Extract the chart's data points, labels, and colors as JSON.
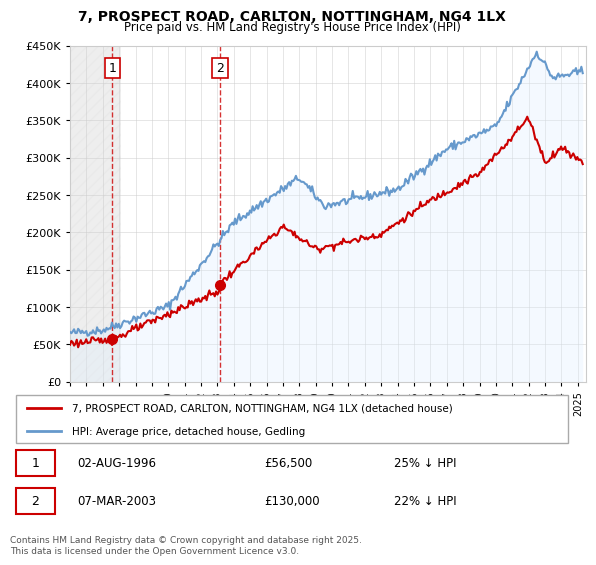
{
  "title": "7, PROSPECT ROAD, CARLTON, NOTTINGHAM, NG4 1LX",
  "subtitle": "Price paid vs. HM Land Registry's House Price Index (HPI)",
  "legend_line1": "7, PROSPECT ROAD, CARLTON, NOTTINGHAM, NG4 1LX (detached house)",
  "legend_line2": "HPI: Average price, detached house, Gedling",
  "annotation1_date": "02-AUG-1996",
  "annotation1_price": "£56,500",
  "annotation1_hpi": "25% ↓ HPI",
  "annotation2_date": "07-MAR-2003",
  "annotation2_price": "£130,000",
  "annotation2_hpi": "22% ↓ HPI",
  "footer": "Contains HM Land Registry data © Crown copyright and database right 2025.\nThis data is licensed under the Open Government Licence v3.0.",
  "sale_color": "#cc0000",
  "hpi_color": "#6699cc",
  "hpi_bg_color": "#ddeeff",
  "ylim": [
    0,
    450000
  ],
  "yticks": [
    0,
    50000,
    100000,
    150000,
    200000,
    250000,
    300000,
    350000,
    400000,
    450000
  ],
  "xlim_start": 1994.0,
  "xlim_end": 2025.5
}
